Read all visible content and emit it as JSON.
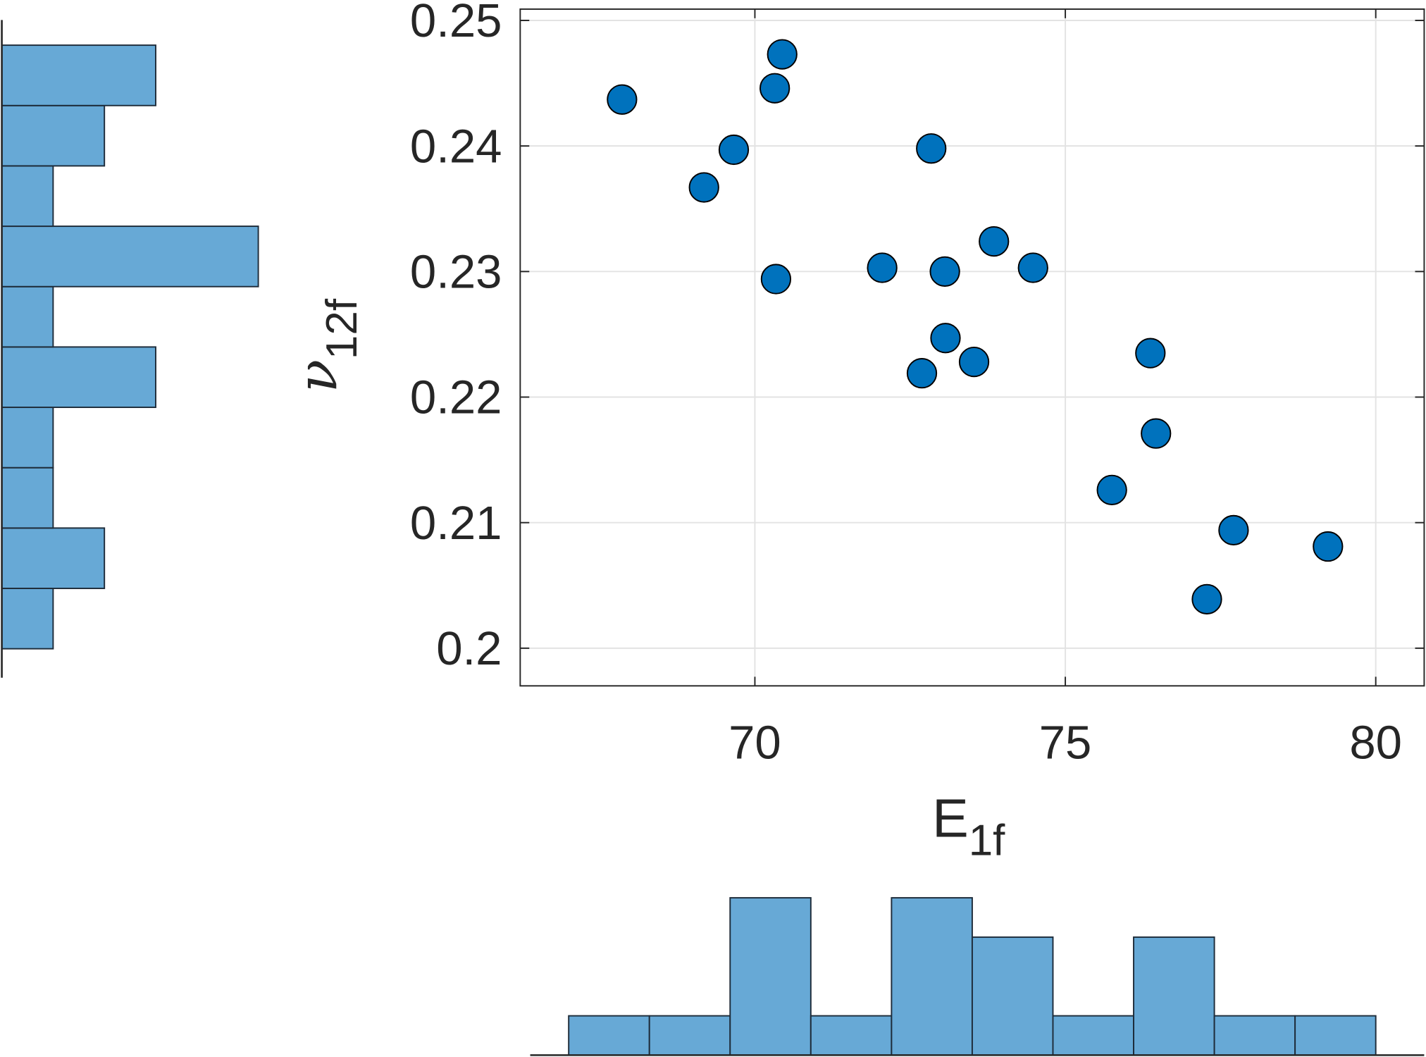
{
  "chart_data": [
    {
      "type": "scatter",
      "xlabel": {
        "text": "E",
        "subscript": "1f"
      },
      "ylabel": {
        "text": "ν",
        "subscript": "12f"
      },
      "x": [
        67.86,
        70.44,
        70.32,
        69.66,
        69.18,
        72.84,
        70.34,
        72.05,
        73.06,
        73.85,
        74.48,
        73.07,
        72.69,
        73.53,
        76.37,
        76.46,
        75.75,
        77.71,
        79.23,
        77.28
      ],
      "values": [
        0.2437,
        0.2473,
        0.2446,
        0.2397,
        0.2367,
        0.2398,
        0.2294,
        0.2303,
        0.23,
        0.2324,
        0.2303,
        0.2247,
        0.2219,
        0.2228,
        0.2235,
        0.2171,
        0.2126,
        0.2094,
        0.2081,
        0.2039
      ],
      "color": "#0072bd",
      "xlim": [
        66.22,
        80.78
      ],
      "ylim": [
        0.197,
        0.2509
      ],
      "xticks": [
        70,
        75,
        80
      ],
      "yticks": [
        0.2,
        0.21,
        0.22,
        0.23,
        0.24,
        0.25
      ],
      "grid": true
    },
    {
      "type": "histogram",
      "orientation": "vertical",
      "bins": [
        67,
        68.3,
        69.6,
        70.9,
        72.2,
        73.5,
        74.8,
        76.1,
        77.4,
        78.7,
        80
      ],
      "values": [
        1,
        1,
        4,
        1,
        4,
        3,
        1,
        3,
        1,
        1
      ],
      "color": "#67a9d6",
      "xlim": [
        66.38,
        80.78
      ],
      "ylim": [
        0,
        4
      ]
    },
    {
      "type": "histogram",
      "orientation": "horizontal",
      "bins": [
        0.2,
        0.2048,
        0.2096,
        0.2144,
        0.2192,
        0.224,
        0.2288,
        0.2336,
        0.2384,
        0.2432,
        0.248
      ],
      "values": [
        1,
        2,
        1,
        1,
        3,
        1,
        5,
        1,
        2,
        3
      ],
      "color": "#67a9d6",
      "xlim": [
        0,
        5
      ],
      "ylim": [
        0.1977,
        0.25
      ]
    }
  ]
}
